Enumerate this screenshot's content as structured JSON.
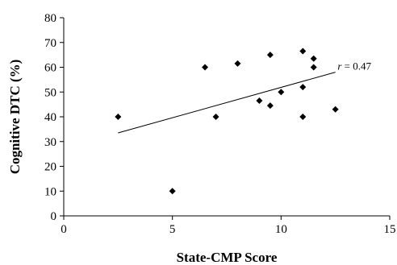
{
  "chart_data": {
    "type": "scatter",
    "title": "",
    "xlabel": "State-CMP Score",
    "ylabel": "Cognitive DTC (%)",
    "xlim": [
      0,
      15
    ],
    "ylim": [
      0,
      80
    ],
    "x_ticks": [
      0,
      5,
      10,
      15
    ],
    "y_ticks": [
      0,
      10,
      20,
      30,
      40,
      50,
      60,
      70,
      80
    ],
    "grid": false,
    "points": [
      {
        "x": 2.5,
        "y": 40
      },
      {
        "x": 5,
        "y": 10
      },
      {
        "x": 6.5,
        "y": 60
      },
      {
        "x": 7,
        "y": 40
      },
      {
        "x": 8,
        "y": 61.5
      },
      {
        "x": 9,
        "y": 46.5
      },
      {
        "x": 9.5,
        "y": 65
      },
      {
        "x": 9.5,
        "y": 44.5
      },
      {
        "x": 10,
        "y": 50
      },
      {
        "x": 11,
        "y": 66.5
      },
      {
        "x": 11,
        "y": 52
      },
      {
        "x": 11,
        "y": 40
      },
      {
        "x": 11.5,
        "y": 63.5
      },
      {
        "x": 11.5,
        "y": 60
      },
      {
        "x": 12.5,
        "y": 43
      }
    ],
    "trendline": {
      "x": [
        2.5,
        12.5
      ],
      "y": [
        33.5,
        58
      ]
    },
    "annotation": {
      "r_symbol": "r",
      "r_text": " = 0.47",
      "at": {
        "x": 12.6,
        "y": 63.5
      }
    }
  }
}
